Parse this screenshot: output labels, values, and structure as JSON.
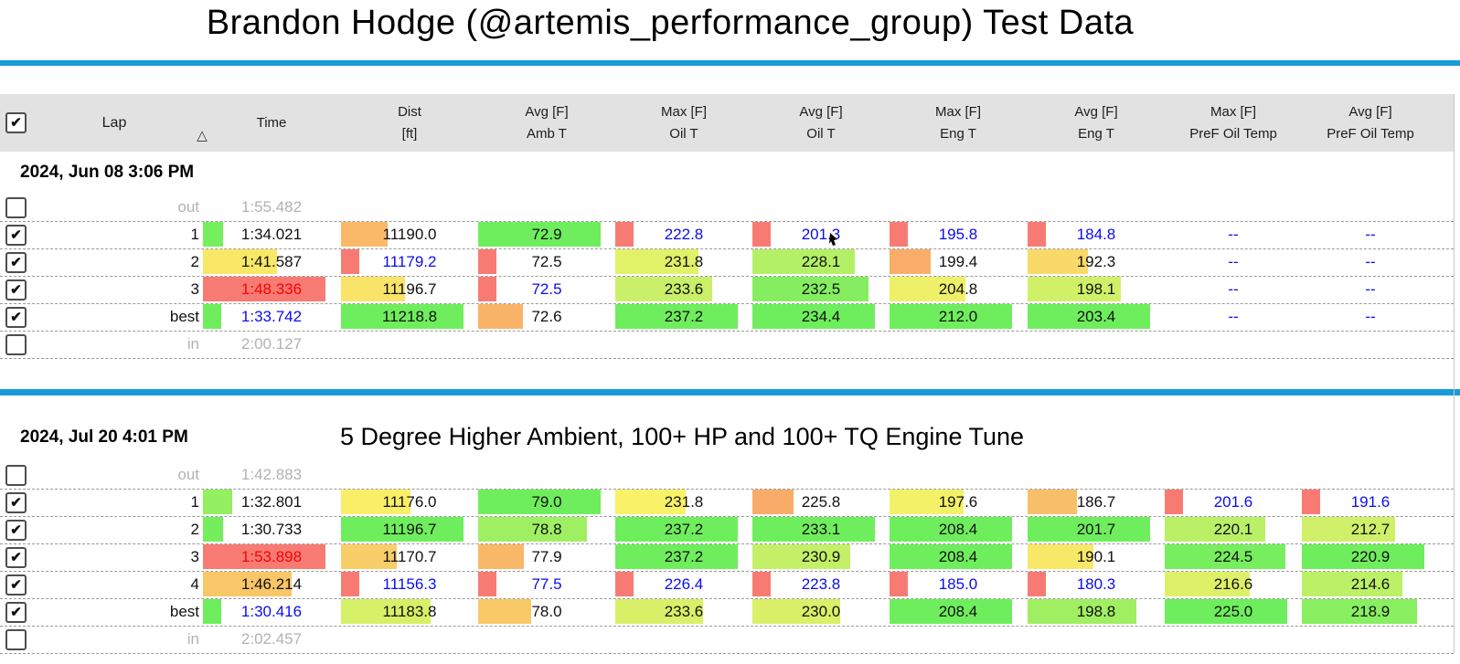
{
  "title": "Brandon Hodge (@artemis_performance_group) Test Data",
  "theme": {
    "accent_rule": "#189cd8",
    "header_bg": "#e2e2e2",
    "bar_gradient": [
      "#f87b73",
      "#f9b368",
      "#f9f168",
      "#c9f068",
      "#6fee5d"
    ],
    "value_blue": "#0b0cf0",
    "value_red": "#f50406",
    "muted_gray": "#b2b2b2"
  },
  "header": {
    "select_all_checked": true,
    "lap_label": "Lap",
    "delta_label": "△",
    "columns": [
      {
        "line1": "Time",
        "line2": "",
        "lower_is_better": true
      },
      {
        "line1": "Dist",
        "line2": "[ft]",
        "lower_is_better": false
      },
      {
        "line1": "Avg [F]",
        "line2": "Amb T",
        "lower_is_better": false
      },
      {
        "line1": "Max [F]",
        "line2": "Oil T",
        "lower_is_better": false
      },
      {
        "line1": "Avg [F]",
        "line2": "Oil T",
        "lower_is_better": false
      },
      {
        "line1": "Max [F]",
        "line2": "Eng T",
        "lower_is_better": false
      },
      {
        "line1": "Avg [F]",
        "line2": "Eng T",
        "lower_is_better": false
      },
      {
        "line1": "Max [F]",
        "line2": "PreF Oil Temp",
        "lower_is_better": false
      },
      {
        "line1": "Avg [F]",
        "line2": "PreF Oil Temp",
        "lower_is_better": false
      }
    ]
  },
  "sessions": [
    {
      "date": "2024, Jun 08 3:06 PM",
      "note": "",
      "rows": [
        {
          "kind": "out",
          "label": "out",
          "time": "1:55.482",
          "checked": false
        },
        {
          "kind": "lap",
          "label": "1",
          "checked": true,
          "cells": [
            {
              "v": "1:34.021"
            },
            {
              "v": "11190.0"
            },
            {
              "v": "72.9"
            },
            {
              "v": "222.8",
              "fg": "blue"
            },
            {
              "v": "201.3",
              "fg": "blue"
            },
            {
              "v": "195.8",
              "fg": "blue"
            },
            {
              "v": "184.8",
              "fg": "blue"
            },
            {
              "v": "--",
              "fg": "blue"
            },
            {
              "v": "--",
              "fg": "blue"
            }
          ]
        },
        {
          "kind": "lap",
          "label": "2",
          "checked": true,
          "cells": [
            {
              "v": "1:41.587"
            },
            {
              "v": "11179.2",
              "fg": "blue"
            },
            {
              "v": "72.5"
            },
            {
              "v": "231.8"
            },
            {
              "v": "228.1"
            },
            {
              "v": "199.4"
            },
            {
              "v": "192.3"
            },
            {
              "v": "--",
              "fg": "blue"
            },
            {
              "v": "--",
              "fg": "blue"
            }
          ]
        },
        {
          "kind": "lap",
          "label": "3",
          "checked": true,
          "cells": [
            {
              "v": "1:48.336",
              "fg": "red"
            },
            {
              "v": "11196.7"
            },
            {
              "v": "72.5",
              "fg": "blue"
            },
            {
              "v": "233.6"
            },
            {
              "v": "232.5"
            },
            {
              "v": "204.8"
            },
            {
              "v": "198.1"
            },
            {
              "v": "--",
              "fg": "blue"
            },
            {
              "v": "--",
              "fg": "blue"
            }
          ]
        },
        {
          "kind": "lap",
          "label": "best",
          "checked": true,
          "cells": [
            {
              "v": "1:33.742",
              "fg": "blue"
            },
            {
              "v": "11218.8"
            },
            {
              "v": "72.6"
            },
            {
              "v": "237.2"
            },
            {
              "v": "234.4"
            },
            {
              "v": "212.0"
            },
            {
              "v": "203.4"
            },
            {
              "v": "--",
              "fg": "blue"
            },
            {
              "v": "--",
              "fg": "blue"
            }
          ]
        },
        {
          "kind": "in",
          "label": "in",
          "time": "2:00.127",
          "checked": false
        }
      ]
    },
    {
      "date": "2024, Jul 20 4:01 PM",
      "note": "5 Degree Higher Ambient, 100+ HP and 100+ TQ Engine Tune",
      "rows": [
        {
          "kind": "out",
          "label": "out",
          "time": "1:42.883",
          "checked": false
        },
        {
          "kind": "lap",
          "label": "1",
          "checked": true,
          "cells": [
            {
              "v": "1:32.801"
            },
            {
              "v": "11176.0"
            },
            {
              "v": "79.0"
            },
            {
              "v": "231.8"
            },
            {
              "v": "225.8"
            },
            {
              "v": "197.6"
            },
            {
              "v": "186.7"
            },
            {
              "v": "201.6",
              "fg": "blue"
            },
            {
              "v": "191.6",
              "fg": "blue"
            }
          ]
        },
        {
          "kind": "lap",
          "label": "2",
          "checked": true,
          "cells": [
            {
              "v": "1:30.733"
            },
            {
              "v": "11196.7"
            },
            {
              "v": "78.8"
            },
            {
              "v": "237.2"
            },
            {
              "v": "233.1"
            },
            {
              "v": "208.4"
            },
            {
              "v": "201.7"
            },
            {
              "v": "220.1"
            },
            {
              "v": "212.7"
            }
          ]
        },
        {
          "kind": "lap",
          "label": "3",
          "checked": true,
          "cells": [
            {
              "v": "1:53.898",
              "fg": "red"
            },
            {
              "v": "11170.7"
            },
            {
              "v": "77.9"
            },
            {
              "v": "237.2"
            },
            {
              "v": "230.9"
            },
            {
              "v": "208.4"
            },
            {
              "v": "190.1"
            },
            {
              "v": "224.5"
            },
            {
              "v": "220.9"
            }
          ]
        },
        {
          "kind": "lap",
          "label": "4",
          "checked": true,
          "cells": [
            {
              "v": "1:46.214"
            },
            {
              "v": "11156.3",
              "fg": "blue"
            },
            {
              "v": "77.5",
              "fg": "blue"
            },
            {
              "v": "226.4",
              "fg": "blue"
            },
            {
              "v": "223.8",
              "fg": "blue"
            },
            {
              "v": "185.0",
              "fg": "blue"
            },
            {
              "v": "180.3",
              "fg": "blue"
            },
            {
              "v": "216.6"
            },
            {
              "v": "214.6"
            }
          ]
        },
        {
          "kind": "lap",
          "label": "best",
          "checked": true,
          "cells": [
            {
              "v": "1:30.416",
              "fg": "blue"
            },
            {
              "v": "11183.8"
            },
            {
              "v": "78.0"
            },
            {
              "v": "233.6"
            },
            {
              "v": "230.0"
            },
            {
              "v": "208.4"
            },
            {
              "v": "198.8"
            },
            {
              "v": "225.0"
            },
            {
              "v": "218.9"
            }
          ]
        },
        {
          "kind": "in",
          "label": "in",
          "time": "2:02.457",
          "checked": false
        }
      ]
    }
  ]
}
